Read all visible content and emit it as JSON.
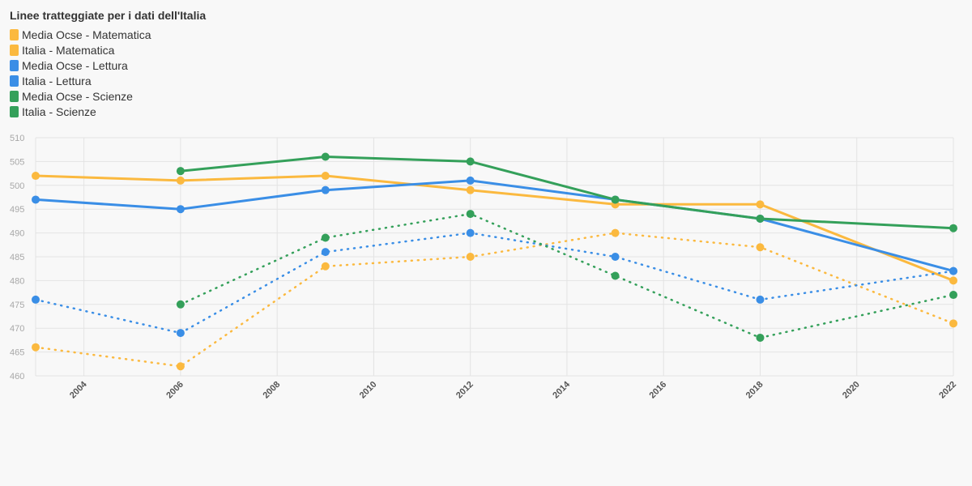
{
  "chart_data": {
    "type": "line",
    "title": "Linee tratteggiate per i dati dell'Italia",
    "x": [
      2003,
      2006,
      2009,
      2012,
      2015,
      2018,
      2022
    ],
    "xticks": [
      "2004",
      "2006",
      "2008",
      "2010",
      "2012",
      "2014",
      "2016",
      "2018",
      "2020",
      "2022"
    ],
    "xlim": [
      2003,
      2022
    ],
    "yticks": [
      "460",
      "465",
      "470",
      "475",
      "480",
      "485",
      "490",
      "495",
      "500",
      "505",
      "510"
    ],
    "ylim": [
      460,
      510
    ],
    "grid": true,
    "legend_position": "top-left",
    "series": [
      {
        "name": "Media Ocse - Matematica",
        "color": "#fbb93f",
        "style": "solid",
        "values": [
          502,
          501,
          502,
          499,
          496,
          496,
          480
        ]
      },
      {
        "name": "Italia - Matematica",
        "color": "#fbb93f",
        "style": "dotted",
        "values": [
          466,
          462,
          483,
          485,
          490,
          487,
          471
        ]
      },
      {
        "name": "Media Ocse - Lettura",
        "color": "#3a8ee6",
        "style": "solid",
        "values": [
          497,
          495,
          499,
          501,
          497,
          493,
          482
        ]
      },
      {
        "name": "Italia - Lettura",
        "color": "#3a8ee6",
        "style": "dotted",
        "values": [
          476,
          469,
          486,
          490,
          485,
          476,
          482
        ]
      },
      {
        "name": "Media Ocse - Scienze",
        "color": "#34a05a",
        "style": "solid",
        "values": [
          null,
          503,
          506,
          505,
          497,
          493,
          491
        ]
      },
      {
        "name": "Italia - Scienze",
        "color": "#34a05a",
        "style": "dotted",
        "values": [
          null,
          475,
          489,
          494,
          481,
          468,
          477
        ]
      }
    ]
  }
}
